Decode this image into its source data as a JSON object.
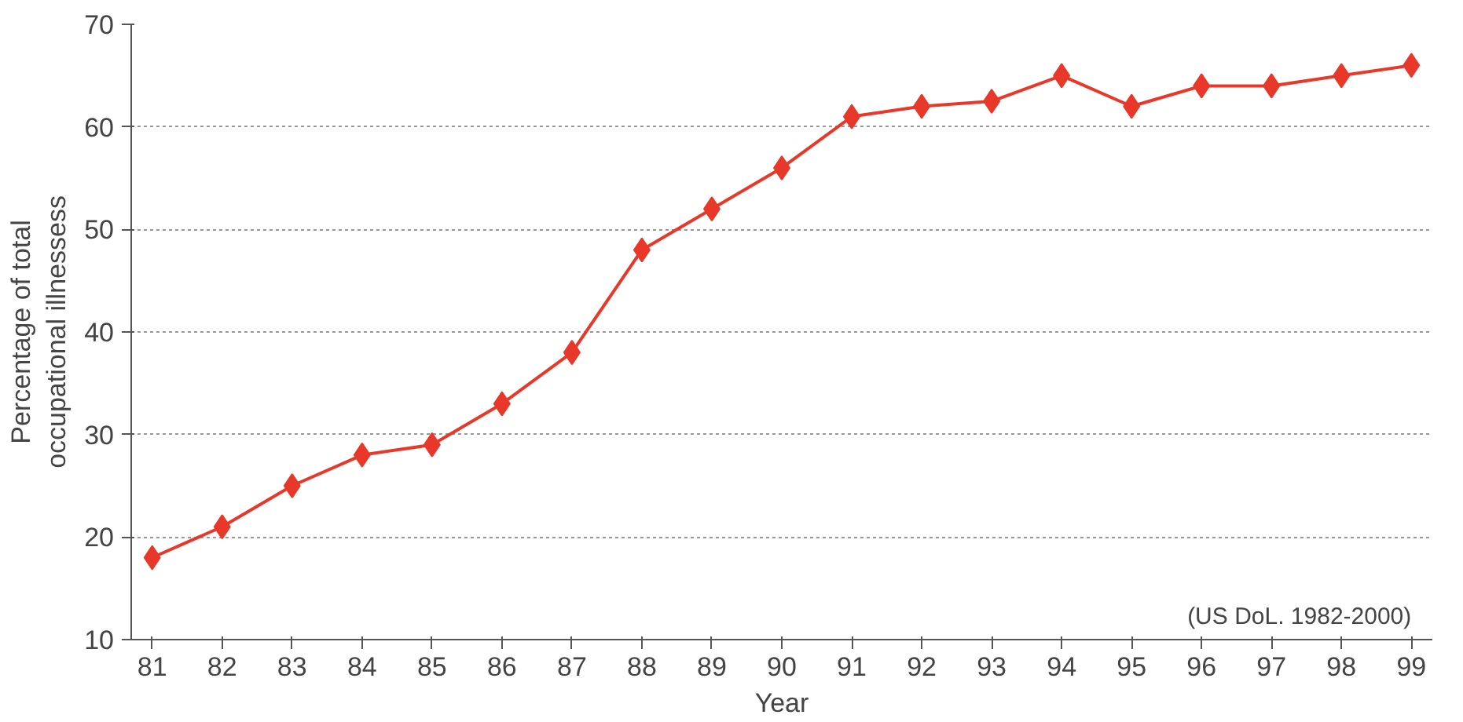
{
  "chart_data": {
    "type": "line",
    "xlabel": "Year",
    "ylabel": "Percentage of total\noccupational illnessess",
    "categories": [
      "81",
      "82",
      "83",
      "84",
      "85",
      "86",
      "87",
      "88",
      "89",
      "90",
      "91",
      "92",
      "93",
      "94",
      "95",
      "96",
      "97",
      "98",
      "99"
    ],
    "series": [
      {
        "color": "#e8382a",
        "values": [
          18,
          21,
          25,
          28,
          29,
          33,
          38,
          48,
          52,
          56,
          61,
          62,
          62.5,
          65,
          62,
          64,
          64,
          65,
          66
        ]
      }
    ],
    "ylim": [
      10,
      70
    ],
    "yticks": [
      10,
      20,
      30,
      40,
      50,
      60,
      70
    ],
    "grid": "y",
    "marker": "diamond",
    "line_style": "solid",
    "annotations": [
      "(US DoL. 1982-2000)"
    ]
  }
}
